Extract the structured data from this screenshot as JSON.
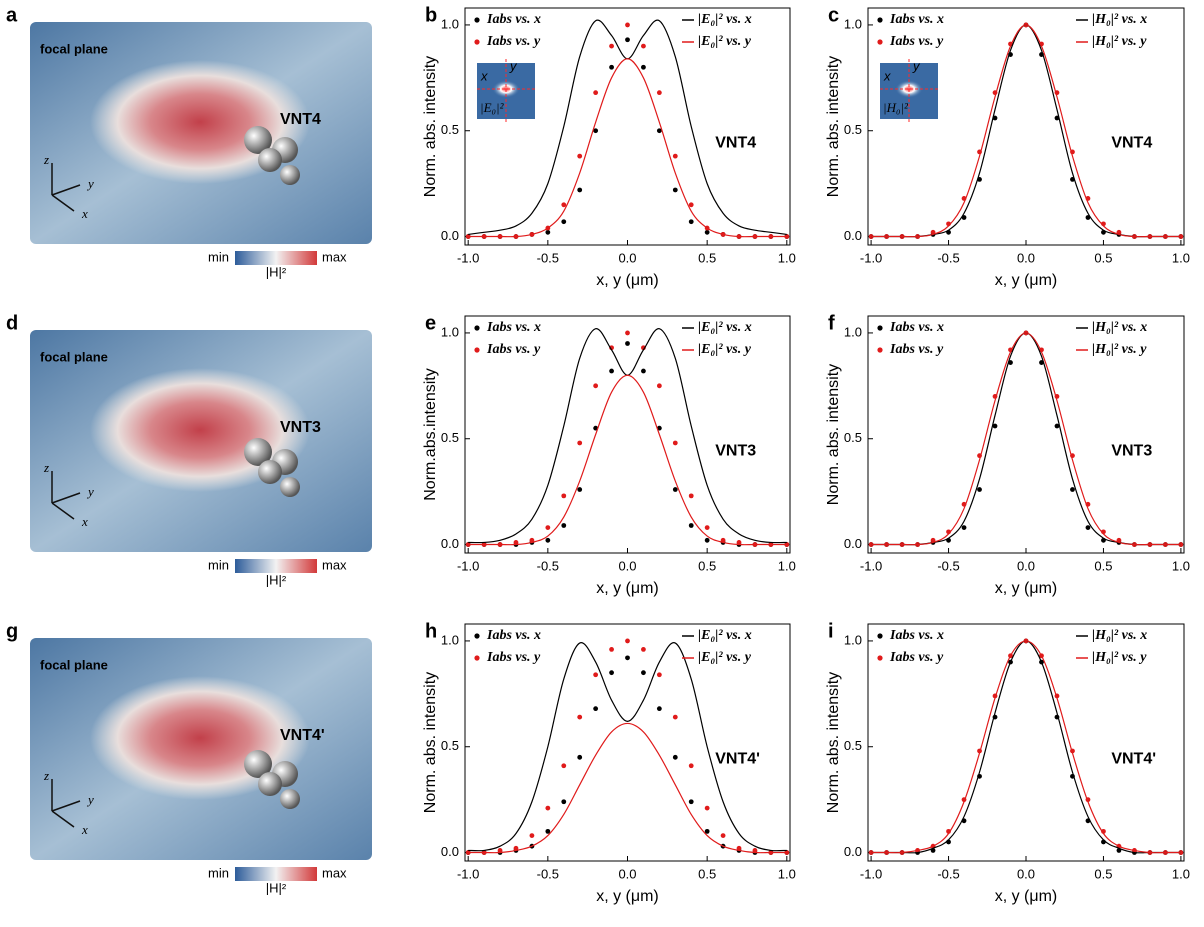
{
  "panels": [
    {
      "letter": "a",
      "label": "focal plane",
      "sample": "VNT4",
      "colorbar": {
        "min": "min",
        "max": "max",
        "quantity": "|H|²"
      },
      "axes": [
        "z",
        "y",
        "x"
      ]
    },
    {
      "letter": "d",
      "label": "focal plane",
      "sample": "VNT3",
      "colorbar": {
        "min": "min",
        "max": "max",
        "quantity": "|H|²"
      },
      "axes": [
        "z",
        "y",
        "x"
      ]
    },
    {
      "letter": "g",
      "label": "focal plane",
      "sample": "VNT4'",
      "colorbar": {
        "min": "min",
        "max": "max",
        "quantity": "|H|²"
      },
      "axes": [
        "z",
        "y",
        "x"
      ]
    }
  ],
  "chart_data": [
    {
      "type": "line",
      "panel": "b",
      "annotation": "VNT4",
      "xlabel": "x, y (μm)",
      "ylabel": "Norm. abs. intensity",
      "inset": {
        "x_label": "x",
        "y_label": "y",
        "quantity": "|E₀|²"
      },
      "xlim": [
        -1.02,
        1.02
      ],
      "ylim": [
        -0.04,
        1.08
      ],
      "xticks": [
        {
          "value": -1,
          "label": "-1.0"
        },
        -0.5,
        {
          "value": 0,
          "label": "0.0"
        },
        0.5,
        {
          "value": 1,
          "label": "1.0"
        }
      ],
      "yticks": [
        {
          "value": 0,
          "label": "0.0"
        },
        0.5,
        {
          "value": 1,
          "label": "1.0"
        }
      ],
      "x": [
        -1,
        -0.9,
        -0.8,
        -0.7,
        -0.6,
        -0.5,
        -0.4,
        -0.3,
        -0.2,
        -0.1,
        0,
        0.1,
        0.2,
        0.3,
        0.4,
        0.5,
        0.6,
        0.7,
        0.8,
        0.9,
        1
      ],
      "series": [
        {
          "name": "Iabs vs. x",
          "mode": "scatter",
          "color": "#000000",
          "values": [
            0,
            0,
            0,
            0,
            0.01,
            0.02,
            0.07,
            0.22,
            0.5,
            0.8,
            0.93,
            0.8,
            0.5,
            0.22,
            0.07,
            0.02,
            0.01,
            0,
            0,
            0,
            0
          ]
        },
        {
          "name": "Iabs vs. y",
          "mode": "scatter",
          "color": "#e01b1b",
          "values": [
            0,
            0,
            0,
            0,
            0.01,
            0.04,
            0.15,
            0.38,
            0.68,
            0.9,
            1.0,
            0.9,
            0.68,
            0.38,
            0.15,
            0.04,
            0.01,
            0,
            0,
            0,
            0
          ]
        },
        {
          "name": "|E₀|² vs. x",
          "mode": "line",
          "color": "#000000",
          "values": [
            0.01,
            0.02,
            0.03,
            0.05,
            0.11,
            0.25,
            0.52,
            0.85,
            1.02,
            0.95,
            0.84,
            0.95,
            1.02,
            0.85,
            0.52,
            0.25,
            0.11,
            0.05,
            0.03,
            0.02,
            0.01
          ]
        },
        {
          "name": "|E₀|² vs. y",
          "mode": "line",
          "color": "#e01b1b",
          "values": [
            0,
            0,
            0,
            0,
            0.01,
            0.04,
            0.12,
            0.3,
            0.54,
            0.75,
            0.84,
            0.75,
            0.54,
            0.3,
            0.12,
            0.04,
            0.01,
            0,
            0,
            0,
            0
          ]
        }
      ]
    },
    {
      "type": "line",
      "panel": "c",
      "annotation": "VNT4",
      "xlabel": "x, y (μm)",
      "ylabel": "Norm. abs. intensity",
      "inset": {
        "x_label": "x",
        "y_label": "y",
        "quantity": "|H₀|²"
      },
      "xlim": [
        -1.02,
        1.02
      ],
      "ylim": [
        -0.04,
        1.08
      ],
      "xticks": [
        {
          "value": -1,
          "label": "-1.0"
        },
        -0.5,
        {
          "value": 0,
          "label": "0.0"
        },
        0.5,
        {
          "value": 1,
          "label": "1.0"
        }
      ],
      "yticks": [
        {
          "value": 0,
          "label": "0.0"
        },
        0.5,
        {
          "value": 1,
          "label": "1.0"
        }
      ],
      "x": [
        -1,
        -0.9,
        -0.8,
        -0.7,
        -0.6,
        -0.5,
        -0.4,
        -0.3,
        -0.2,
        -0.1,
        0,
        0.1,
        0.2,
        0.3,
        0.4,
        0.5,
        0.6,
        0.7,
        0.8,
        0.9,
        1
      ],
      "series": [
        {
          "name": "Iabs vs. x",
          "mode": "scatter",
          "color": "#000000",
          "values": [
            0,
            0,
            0,
            0,
            0.01,
            0.02,
            0.09,
            0.27,
            0.56,
            0.86,
            1.0,
            0.86,
            0.56,
            0.27,
            0.09,
            0.02,
            0.01,
            0,
            0,
            0,
            0
          ]
        },
        {
          "name": "Iabs vs. y",
          "mode": "scatter",
          "color": "#e01b1b",
          "values": [
            0,
            0,
            0,
            0,
            0.02,
            0.06,
            0.18,
            0.4,
            0.68,
            0.91,
            1.0,
            0.91,
            0.68,
            0.4,
            0.18,
            0.06,
            0.02,
            0,
            0,
            0,
            0
          ]
        },
        {
          "name": "|H₀|² vs. x",
          "mode": "line",
          "color": "#000000",
          "values": [
            0,
            0,
            0,
            0,
            0.01,
            0.03,
            0.11,
            0.3,
            0.6,
            0.88,
            1.0,
            0.88,
            0.6,
            0.3,
            0.11,
            0.03,
            0.01,
            0,
            0,
            0,
            0
          ]
        },
        {
          "name": "|H₀|² vs. y",
          "mode": "line",
          "color": "#e01b1b",
          "values": [
            0,
            0,
            0,
            0,
            0.01,
            0.05,
            0.16,
            0.38,
            0.66,
            0.9,
            1.0,
            0.9,
            0.66,
            0.38,
            0.16,
            0.05,
            0.01,
            0,
            0,
            0,
            0
          ]
        }
      ]
    },
    {
      "type": "line",
      "panel": "e",
      "annotation": "VNT3",
      "xlabel": "x, y (μm)",
      "ylabel": "Norm.abs.intensity",
      "xlim": [
        -1.02,
        1.02
      ],
      "ylim": [
        -0.04,
        1.08
      ],
      "xticks": [
        {
          "value": -1,
          "label": "-1.0"
        },
        -0.5,
        {
          "value": 0,
          "label": "0.0"
        },
        0.5,
        {
          "value": 1,
          "label": "1.0"
        }
      ],
      "yticks": [
        {
          "value": 0,
          "label": "0.0"
        },
        0.5,
        {
          "value": 1,
          "label": "1.0"
        }
      ],
      "x": [
        -1,
        -0.9,
        -0.8,
        -0.7,
        -0.6,
        -0.5,
        -0.4,
        -0.3,
        -0.2,
        -0.1,
        0,
        0.1,
        0.2,
        0.3,
        0.4,
        0.5,
        0.6,
        0.7,
        0.8,
        0.9,
        1
      ],
      "series": [
        {
          "name": "Iabs vs. x",
          "mode": "scatter",
          "color": "#000000",
          "values": [
            0,
            0,
            0,
            0,
            0.01,
            0.02,
            0.09,
            0.26,
            0.55,
            0.82,
            0.95,
            0.82,
            0.55,
            0.26,
            0.09,
            0.02,
            0.01,
            0,
            0,
            0,
            0
          ]
        },
        {
          "name": "Iabs vs. y",
          "mode": "scatter",
          "color": "#e01b1b",
          "values": [
            0,
            0,
            0,
            0.01,
            0.02,
            0.08,
            0.23,
            0.48,
            0.75,
            0.93,
            1.0,
            0.93,
            0.75,
            0.48,
            0.23,
            0.08,
            0.02,
            0.01,
            0,
            0,
            0
          ]
        },
        {
          "name": "|E₀|² vs. x",
          "mode": "line",
          "color": "#000000",
          "values": [
            0.01,
            0.01,
            0.02,
            0.05,
            0.12,
            0.28,
            0.56,
            0.88,
            1.02,
            0.92,
            0.8,
            0.92,
            1.02,
            0.88,
            0.56,
            0.28,
            0.12,
            0.05,
            0.02,
            0.01,
            0.01
          ]
        },
        {
          "name": "|E₀|² vs. y",
          "mode": "line",
          "color": "#e01b1b",
          "values": [
            0,
            0,
            0,
            0,
            0.01,
            0.04,
            0.13,
            0.3,
            0.52,
            0.72,
            0.8,
            0.72,
            0.52,
            0.3,
            0.13,
            0.04,
            0.01,
            0,
            0,
            0,
            0
          ]
        }
      ]
    },
    {
      "type": "line",
      "panel": "f",
      "annotation": "VNT3",
      "xlabel": "x, y (μm)",
      "ylabel": "Norm. abs. intensity",
      "xlim": [
        -1.02,
        1.02
      ],
      "ylim": [
        -0.04,
        1.08
      ],
      "xticks": [
        {
          "value": -1,
          "label": "-1.0"
        },
        -0.5,
        {
          "value": 0,
          "label": "0.0"
        },
        0.5,
        {
          "value": 1,
          "label": "1.0"
        }
      ],
      "yticks": [
        {
          "value": 0,
          "label": "0.0"
        },
        0.5,
        {
          "value": 1,
          "label": "1.0"
        }
      ],
      "x": [
        -1,
        -0.9,
        -0.8,
        -0.7,
        -0.6,
        -0.5,
        -0.4,
        -0.3,
        -0.2,
        -0.1,
        0,
        0.1,
        0.2,
        0.3,
        0.4,
        0.5,
        0.6,
        0.7,
        0.8,
        0.9,
        1
      ],
      "series": [
        {
          "name": "Iabs vs. x",
          "mode": "scatter",
          "color": "#000000",
          "values": [
            0,
            0,
            0,
            0,
            0.01,
            0.02,
            0.08,
            0.26,
            0.56,
            0.86,
            1.0,
            0.86,
            0.56,
            0.26,
            0.08,
            0.02,
            0.01,
            0,
            0,
            0,
            0
          ]
        },
        {
          "name": "Iabs vs. y",
          "mode": "scatter",
          "color": "#e01b1b",
          "values": [
            0,
            0,
            0,
            0,
            0.02,
            0.06,
            0.19,
            0.42,
            0.7,
            0.92,
            1.0,
            0.92,
            0.7,
            0.42,
            0.19,
            0.06,
            0.02,
            0,
            0,
            0,
            0
          ]
        },
        {
          "name": "|H₀|² vs. x",
          "mode": "line",
          "color": "#000000",
          "values": [
            0,
            0,
            0,
            0,
            0.01,
            0.03,
            0.11,
            0.31,
            0.61,
            0.89,
            1.0,
            0.89,
            0.61,
            0.31,
            0.11,
            0.03,
            0.01,
            0,
            0,
            0,
            0
          ]
        },
        {
          "name": "|H₀|² vs. y",
          "mode": "line",
          "color": "#e01b1b",
          "values": [
            0,
            0,
            0,
            0,
            0.01,
            0.05,
            0.17,
            0.4,
            0.68,
            0.91,
            1.0,
            0.91,
            0.68,
            0.4,
            0.17,
            0.05,
            0.01,
            0,
            0,
            0,
            0
          ]
        }
      ]
    },
    {
      "type": "line",
      "panel": "h",
      "annotation": "VNT4'",
      "xlabel": "x, y (μm)",
      "ylabel": "Norm. abs. intensity",
      "xlim": [
        -1.02,
        1.02
      ],
      "ylim": [
        -0.04,
        1.08
      ],
      "xticks": [
        {
          "value": -1,
          "label": "-1.0"
        },
        -0.5,
        {
          "value": 0,
          "label": "0.0"
        },
        0.5,
        {
          "value": 1,
          "label": "1.0"
        }
      ],
      "yticks": [
        {
          "value": 0,
          "label": "0.0"
        },
        0.5,
        {
          "value": 1,
          "label": "1.0"
        }
      ],
      "x": [
        -1,
        -0.9,
        -0.8,
        -0.7,
        -0.6,
        -0.5,
        -0.4,
        -0.3,
        -0.2,
        -0.1,
        0,
        0.1,
        0.2,
        0.3,
        0.4,
        0.5,
        0.6,
        0.7,
        0.8,
        0.9,
        1
      ],
      "series": [
        {
          "name": "Iabs vs. x",
          "mode": "scatter",
          "color": "#000000",
          "values": [
            0,
            0,
            0,
            0.01,
            0.03,
            0.1,
            0.24,
            0.45,
            0.68,
            0.85,
            0.92,
            0.85,
            0.68,
            0.45,
            0.24,
            0.1,
            0.03,
            0.01,
            0,
            0,
            0
          ]
        },
        {
          "name": "Iabs vs. y",
          "mode": "scatter",
          "color": "#e01b1b",
          "values": [
            0,
            0,
            0.01,
            0.02,
            0.08,
            0.21,
            0.41,
            0.64,
            0.84,
            0.96,
            1.0,
            0.96,
            0.84,
            0.64,
            0.41,
            0.21,
            0.08,
            0.02,
            0.01,
            0,
            0
          ]
        },
        {
          "name": "|E₀|² vs. x",
          "mode": "line",
          "color": "#000000",
          "values": [
            0.01,
            0.01,
            0.03,
            0.09,
            0.24,
            0.5,
            0.82,
            0.99,
            0.9,
            0.72,
            0.62,
            0.72,
            0.9,
            0.99,
            0.82,
            0.5,
            0.24,
            0.09,
            0.03,
            0.01,
            0.01
          ]
        },
        {
          "name": "|E₀|² vs. y",
          "mode": "line",
          "color": "#e01b1b",
          "values": [
            0,
            0,
            0,
            0.01,
            0.03,
            0.08,
            0.18,
            0.32,
            0.46,
            0.57,
            0.61,
            0.57,
            0.46,
            0.32,
            0.18,
            0.08,
            0.03,
            0.01,
            0,
            0,
            0
          ]
        }
      ]
    },
    {
      "type": "line",
      "panel": "i",
      "annotation": "VNT4'",
      "xlabel": "x, y (μm)",
      "ylabel": "Norm. abs. intensity",
      "xlim": [
        -1.02,
        1.02
      ],
      "ylim": [
        -0.04,
        1.08
      ],
      "xticks": [
        {
          "value": -1,
          "label": "-1.0"
        },
        -0.5,
        {
          "value": 0,
          "label": "0.0"
        },
        0.5,
        {
          "value": 1,
          "label": "1.0"
        }
      ],
      "yticks": [
        {
          "value": 0,
          "label": "0.0"
        },
        0.5,
        {
          "value": 1,
          "label": "1.0"
        }
      ],
      "x": [
        -1,
        -0.9,
        -0.8,
        -0.7,
        -0.6,
        -0.5,
        -0.4,
        -0.3,
        -0.2,
        -0.1,
        0,
        0.1,
        0.2,
        0.3,
        0.4,
        0.5,
        0.6,
        0.7,
        0.8,
        0.9,
        1
      ],
      "series": [
        {
          "name": "Iabs vs. x",
          "mode": "scatter",
          "color": "#000000",
          "values": [
            0,
            0,
            0,
            0,
            0.01,
            0.05,
            0.15,
            0.36,
            0.64,
            0.9,
            1.0,
            0.9,
            0.64,
            0.36,
            0.15,
            0.05,
            0.01,
            0,
            0,
            0,
            0
          ]
        },
        {
          "name": "Iabs vs. y",
          "mode": "scatter",
          "color": "#e01b1b",
          "values": [
            0,
            0,
            0,
            0.01,
            0.03,
            0.1,
            0.25,
            0.48,
            0.74,
            0.93,
            1.0,
            0.93,
            0.74,
            0.48,
            0.25,
            0.1,
            0.03,
            0.01,
            0,
            0,
            0
          ]
        },
        {
          "name": "|H₀|² vs. x",
          "mode": "line",
          "color": "#000000",
          "values": [
            0,
            0,
            0,
            0,
            0.02,
            0.06,
            0.17,
            0.38,
            0.66,
            0.9,
            1.0,
            0.9,
            0.66,
            0.38,
            0.17,
            0.06,
            0.02,
            0,
            0,
            0,
            0
          ]
        },
        {
          "name": "|H₀|² vs. y",
          "mode": "line",
          "color": "#e01b1b",
          "values": [
            0,
            0,
            0,
            0.01,
            0.03,
            0.09,
            0.24,
            0.47,
            0.73,
            0.93,
            1.0,
            0.93,
            0.73,
            0.47,
            0.24,
            0.09,
            0.03,
            0.01,
            0,
            0,
            0
          ]
        }
      ]
    }
  ]
}
